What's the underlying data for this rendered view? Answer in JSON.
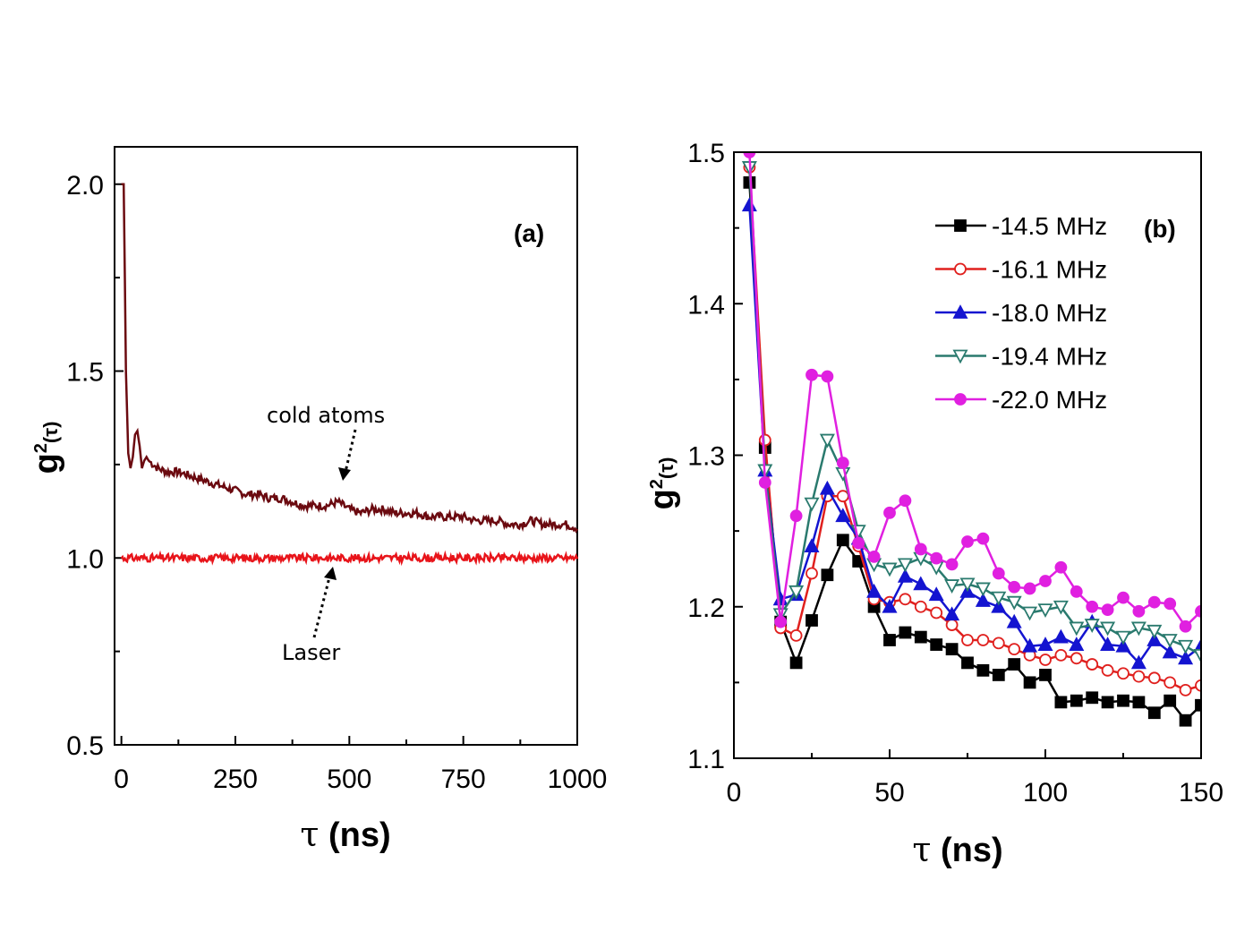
{
  "chart_data": [
    {
      "panel": "(a)",
      "type": "line",
      "xlabel_sym": "τ",
      "xlabel_unit": "ns",
      "ylabel_base": "g",
      "ylabel_sup": "2",
      "ylabel_arg": "(τ)",
      "xlim": [
        -15,
        1000
      ],
      "ylim": [
        0.5,
        2.1
      ],
      "xticks": [
        0,
        250,
        500,
        750,
        1000
      ],
      "yticks": [
        0.5,
        1.0,
        1.5,
        2.0
      ],
      "ytick_labels": [
        "0.5",
        "1.0",
        "1.5",
        "2.0"
      ],
      "series": [
        {
          "name": "cold atoms",
          "color": "#6b0a10",
          "x": [
            0,
            5,
            10,
            15,
            20,
            25,
            30,
            35,
            40,
            45,
            50,
            55,
            60,
            70,
            80,
            100,
            125,
            150,
            175,
            200,
            225,
            250,
            275,
            300,
            325,
            350,
            375,
            400,
            425,
            450,
            475,
            500,
            525,
            550,
            575,
            600,
            625,
            650,
            675,
            700,
            725,
            750,
            775,
            800,
            825,
            850,
            875,
            900,
            925,
            950,
            975,
            1000
          ],
          "y": [
            2.0,
            2.0,
            1.5,
            1.28,
            1.24,
            1.27,
            1.33,
            1.34,
            1.3,
            1.24,
            1.26,
            1.27,
            1.26,
            1.25,
            1.24,
            1.23,
            1.23,
            1.22,
            1.21,
            1.2,
            1.19,
            1.18,
            1.17,
            1.17,
            1.16,
            1.16,
            1.15,
            1.14,
            1.14,
            1.14,
            1.15,
            1.13,
            1.12,
            1.13,
            1.13,
            1.12,
            1.12,
            1.12,
            1.11,
            1.11,
            1.11,
            1.11,
            1.1,
            1.1,
            1.1,
            1.09,
            1.09,
            1.1,
            1.09,
            1.09,
            1.09,
            1.08
          ]
        },
        {
          "name": "Laser",
          "color": "#e8141a",
          "x": [
            0,
            1000
          ],
          "y": [
            1.0,
            1.0
          ]
        }
      ],
      "annotations": [
        "cold atoms",
        "Laser"
      ]
    },
    {
      "panel": "(b)",
      "type": "line",
      "xlabel_sym": "τ",
      "xlabel_unit": "ns",
      "ylabel_base": "g",
      "ylabel_sup": "2",
      "ylabel_arg": "(τ)",
      "xlim": [
        0,
        150
      ],
      "ylim": [
        1.1,
        1.5
      ],
      "xticks": [
        0,
        50,
        100,
        150
      ],
      "yticks": [
        1.1,
        1.2,
        1.3,
        1.4,
        1.5
      ],
      "ytick_labels": [
        "1.1",
        "1.2",
        "1.3",
        "1.4",
        "1.5"
      ],
      "x": [
        5,
        10,
        15,
        20,
        25,
        30,
        35,
        40,
        45,
        50,
        55,
        60,
        65,
        70,
        75,
        80,
        85,
        90,
        95,
        100,
        105,
        110,
        115,
        120,
        125,
        130,
        135,
        140,
        145,
        150
      ],
      "series": [
        {
          "name": "-14.5 MHz",
          "color": "#000000",
          "marker": "square",
          "values": [
            1.48,
            1.305,
            1.19,
            1.163,
            1.191,
            1.221,
            1.244,
            1.23,
            1.2,
            1.178,
            1.183,
            1.18,
            1.175,
            1.172,
            1.163,
            1.158,
            1.155,
            1.162,
            1.15,
            1.155,
            1.137,
            1.138,
            1.14,
            1.137,
            1.138,
            1.137,
            1.13,
            1.138,
            1.125,
            1.135
          ]
        },
        {
          "name": "-16.1 MHz",
          "color": "#e0201e",
          "marker": "open-circle",
          "values": [
            1.49,
            1.31,
            1.186,
            1.181,
            1.222,
            1.273,
            1.273,
            1.24,
            1.205,
            1.203,
            1.205,
            1.2,
            1.196,
            1.188,
            1.178,
            1.178,
            1.176,
            1.172,
            1.168,
            1.165,
            1.168,
            1.166,
            1.162,
            1.158,
            1.156,
            1.154,
            1.153,
            1.15,
            1.145,
            1.148
          ]
        },
        {
          "name": "-18.0 MHz",
          "color": "#1414d0",
          "marker": "filled-triangle-up",
          "values": [
            1.465,
            1.29,
            1.205,
            1.208,
            1.24,
            1.278,
            1.26,
            1.245,
            1.21,
            1.2,
            1.22,
            1.215,
            1.208,
            1.195,
            1.21,
            1.204,
            1.2,
            1.19,
            1.174,
            1.175,
            1.18,
            1.175,
            1.19,
            1.175,
            1.174,
            1.163,
            1.178,
            1.17,
            1.166,
            1.174
          ]
        },
        {
          "name": "-19.4 MHz",
          "color": "#2a7a6e",
          "marker": "open-triangle-down",
          "values": [
            1.49,
            1.29,
            1.195,
            1.21,
            1.268,
            1.31,
            1.288,
            1.25,
            1.228,
            1.225,
            1.228,
            1.232,
            1.226,
            1.214,
            1.215,
            1.212,
            1.206,
            1.203,
            1.196,
            1.198,
            1.2,
            1.186,
            1.188,
            1.186,
            1.18,
            1.186,
            1.184,
            1.178,
            1.174,
            1.168
          ]
        },
        {
          "name": "-22.0 MHz",
          "color": "#e020e0",
          "marker": "filled-circle",
          "values": [
            1.5,
            1.282,
            1.19,
            1.26,
            1.353,
            1.352,
            1.295,
            1.242,
            1.233,
            1.262,
            1.27,
            1.238,
            1.232,
            1.228,
            1.243,
            1.245,
            1.222,
            1.213,
            1.212,
            1.217,
            1.226,
            1.21,
            1.2,
            1.198,
            1.206,
            1.197,
            1.203,
            1.202,
            1.187,
            1.197
          ]
        }
      ]
    }
  ]
}
